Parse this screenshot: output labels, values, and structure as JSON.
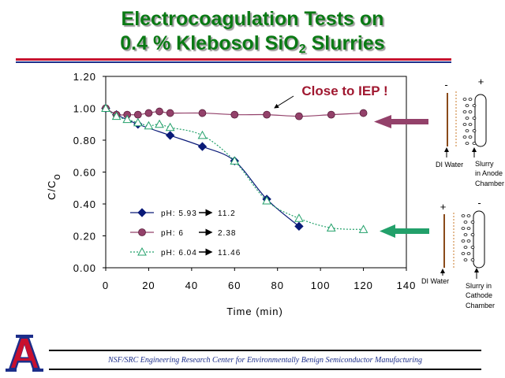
{
  "slide": {
    "title_line1": "Electrocoagulation Tests on",
    "title_line2_pre": "0.4 % Klebosol SiO",
    "title_line2_sub": "2",
    "title_line2_post": " Slurries",
    "footer": "NSF/SRC Engineering Research Center for Environmentally Benign Semiconductor Manufacturing",
    "logo_letter": "A"
  },
  "chart_data": {
    "type": "scatter",
    "xlabel": "Time (min)",
    "ylabel_main": "C/C",
    "ylabel_sub": "o",
    "xlim": [
      0,
      140
    ],
    "ylim": [
      0,
      1.2
    ],
    "x_ticks": [
      "0",
      "20",
      "40",
      "60",
      "80",
      "100",
      "120",
      "140"
    ],
    "y_ticks": [
      "0.00",
      "0.20",
      "0.40",
      "0.60",
      "0.80",
      "1.00",
      "1.20"
    ],
    "grid": false,
    "legend_position": "bottom-left",
    "annotation": "Close to IEP !",
    "series": [
      {
        "name": "pH: 5.93",
        "name_end": "11.2",
        "color": "#0a1a78",
        "marker": "diamond",
        "line": "solid",
        "x": [
          0,
          5,
          15,
          30,
          45,
          60,
          75,
          90
        ],
        "y": [
          1.0,
          0.96,
          0.9,
          0.83,
          0.76,
          0.67,
          0.43,
          0.26
        ]
      },
      {
        "name": "pH: 6",
        "name_end": "2.38",
        "color": "#93416a",
        "marker": "circle",
        "line": "solid",
        "x": [
          0,
          5,
          10,
          15,
          20,
          25,
          30,
          45,
          60,
          75,
          90,
          105,
          120
        ],
        "y": [
          1.0,
          0.96,
          0.96,
          0.96,
          0.97,
          0.98,
          0.97,
          0.97,
          0.96,
          0.96,
          0.95,
          0.96,
          0.97
        ]
      },
      {
        "name": "pH: 6.04",
        "name_end": "11.46",
        "color": "#22a06a",
        "marker": "triangle",
        "line": "dotted",
        "x": [
          0,
          5,
          10,
          15,
          20,
          25,
          30,
          45,
          60,
          75,
          90,
          105,
          120
        ],
        "y": [
          1.0,
          0.95,
          0.93,
          0.91,
          0.89,
          0.9,
          0.88,
          0.83,
          0.67,
          0.42,
          0.31,
          0.25,
          0.24
        ]
      }
    ]
  },
  "side_panels": {
    "anode": {
      "left_sign": "-",
      "right_sign": "+",
      "left_label": "DI Water",
      "right_label_lines": [
        "Slurry",
        "in Anode",
        "Chamber"
      ]
    },
    "cathode": {
      "left_sign": "+",
      "right_sign": "-",
      "left_label": "DI Water",
      "right_label_lines": [
        "Slurry in",
        "Cathode",
        "Chamber"
      ]
    }
  }
}
